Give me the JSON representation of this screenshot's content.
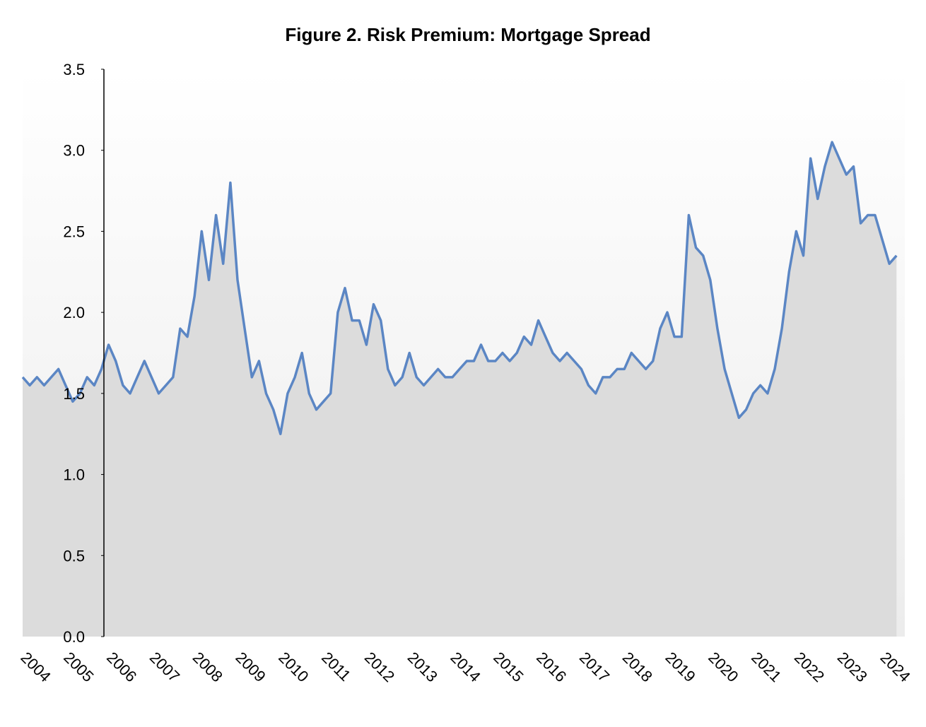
{
  "chart_data": {
    "type": "area",
    "title": "Figure 2. Risk Premium: Mortgage Spread",
    "categories": [
      "2004",
      null,
      null,
      null,
      null,
      null,
      "2005",
      null,
      null,
      null,
      null,
      null,
      "2006",
      null,
      null,
      null,
      null,
      null,
      "2007",
      null,
      null,
      null,
      null,
      null,
      "2008",
      null,
      null,
      null,
      null,
      null,
      "2009",
      null,
      null,
      null,
      null,
      null,
      "2010",
      null,
      null,
      null,
      null,
      null,
      "2011",
      null,
      null,
      null,
      null,
      null,
      "2012",
      null,
      null,
      null,
      null,
      null,
      "2013",
      null,
      null,
      null,
      null,
      null,
      "2014",
      null,
      null,
      null,
      null,
      null,
      "2015",
      null,
      null,
      null,
      null,
      null,
      "2016",
      null,
      null,
      null,
      null,
      null,
      "2017",
      null,
      null,
      null,
      null,
      null,
      "2018",
      null,
      null,
      null,
      null,
      null,
      "2019",
      null,
      null,
      null,
      null,
      null,
      "2020",
      null,
      null,
      null,
      null,
      null,
      "2021",
      null,
      null,
      null,
      null,
      null,
      "2022",
      null,
      null,
      null,
      null,
      null,
      "2023",
      null,
      null,
      null,
      null,
      null,
      "2024",
      null,
      null
    ],
    "series": [
      {
        "name": "Mortgage Spread",
        "color": "#5b86c4",
        "fill": "#dcdcdc",
        "values": [
          1.6,
          1.55,
          1.6,
          1.55,
          1.6,
          1.65,
          1.55,
          1.45,
          1.5,
          1.6,
          1.55,
          1.65,
          1.8,
          1.7,
          1.55,
          1.5,
          1.6,
          1.7,
          1.6,
          1.5,
          1.55,
          1.6,
          1.9,
          1.85,
          2.1,
          2.5,
          2.2,
          2.6,
          2.3,
          2.8,
          2.2,
          1.9,
          1.6,
          1.7,
          1.5,
          1.4,
          1.25,
          1.5,
          1.6,
          1.75,
          1.5,
          1.4,
          1.45,
          1.5,
          2.0,
          2.15,
          1.95,
          1.95,
          1.8,
          2.05,
          1.95,
          1.65,
          1.55,
          1.6,
          1.75,
          1.6,
          1.55,
          1.6,
          1.65,
          1.6,
          1.6,
          1.65,
          1.7,
          1.7,
          1.8,
          1.7,
          1.7,
          1.75,
          1.7,
          1.75,
          1.85,
          1.8,
          1.95,
          1.85,
          1.75,
          1.7,
          1.75,
          1.7,
          1.65,
          1.55,
          1.5,
          1.6,
          1.6,
          1.65,
          1.65,
          1.75,
          1.7,
          1.65,
          1.7,
          1.9,
          2.0,
          1.85,
          1.85,
          2.6,
          2.4,
          2.35,
          2.2,
          1.9,
          1.65,
          1.5,
          1.35,
          1.4,
          1.5,
          1.55,
          1.5,
          1.65,
          1.9,
          2.25,
          2.5,
          2.35,
          2.95,
          2.7,
          2.9,
          3.05,
          2.95,
          2.85,
          2.9,
          2.55,
          2.6,
          2.6,
          2.45,
          2.3,
          2.35
        ]
      }
    ],
    "ylim": [
      0,
      3.5
    ],
    "yticks": [
      {
        "value": 0,
        "label": "0.0"
      },
      0.5,
      {
        "value": 1,
        "label": "1.0"
      },
      1.5,
      {
        "value": 2,
        "label": "2.0"
      },
      2.5,
      {
        "value": 3,
        "label": "3.0"
      },
      3.5
    ]
  }
}
